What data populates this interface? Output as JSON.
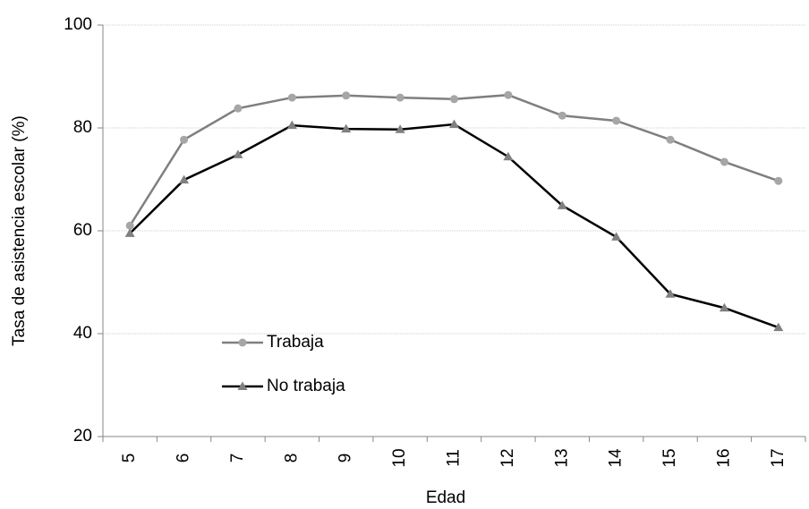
{
  "chart_data": {
    "type": "line",
    "x_label": "Edad",
    "y_label": "Tasa de asistencia escolar (%)",
    "categories": [
      "5",
      "6",
      "7",
      "8",
      "9",
      "10",
      "11",
      "12",
      "13",
      "14",
      "15",
      "16",
      "17"
    ],
    "series": [
      {
        "name": "Trabaja",
        "color": "#7f7f7f",
        "marker": "circle",
        "marker_color": "#a6a6a6",
        "values": [
          61.0,
          77.7,
          83.8,
          85.9,
          86.3,
          85.9,
          85.6,
          86.4,
          82.4,
          81.4,
          77.7,
          73.4,
          69.7
        ]
      },
      {
        "name": "No trabaja",
        "color": "#000000",
        "marker": "triangle",
        "marker_color": "#808080",
        "values": [
          59.5,
          69.9,
          74.8,
          80.5,
          79.8,
          79.7,
          80.7,
          74.4,
          64.9,
          58.8,
          47.7,
          45.0,
          41.2
        ]
      }
    ],
    "ylim": [
      20,
      100
    ],
    "yticks": [
      20,
      40,
      60,
      80,
      100
    ],
    "grid": true,
    "legend": "lower-left"
  }
}
